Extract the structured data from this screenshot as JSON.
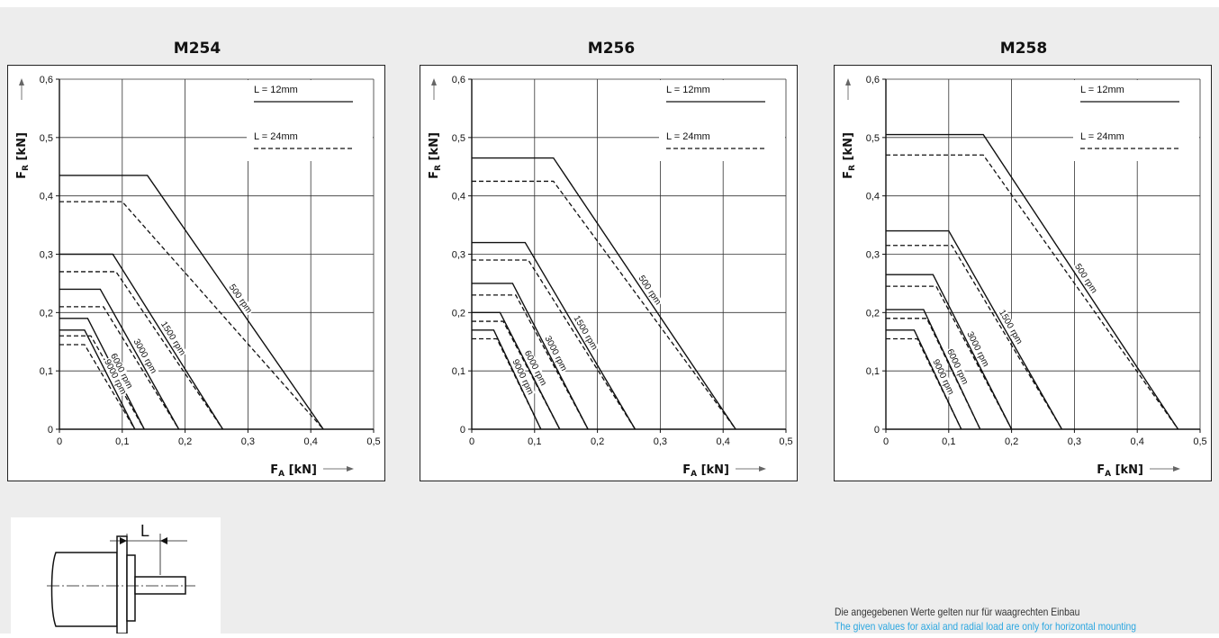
{
  "chart_data": [
    {
      "type": "line",
      "title": "M254",
      "xlabel": "F_A [kN]",
      "ylabel": "F_R [kN]",
      "xlim": [
        0,
        0.5
      ],
      "ylim": [
        0,
        0.6
      ],
      "xticks": [
        "0",
        "0,1",
        "0,2",
        "0,3",
        "0,4",
        "0,5"
      ],
      "yticks": [
        "0",
        "0,1",
        "0,2",
        "0,3",
        "0,4",
        "0,5",
        "0,6"
      ],
      "legend": [
        {
          "label": "L = 12mm",
          "style": "solid"
        },
        {
          "label": "L = 24mm",
          "style": "dashed"
        }
      ],
      "series": [
        {
          "name": "500 rpm",
          "solid": [
            [
              0,
              0.435
            ],
            [
              0.14,
              0.435
            ],
            [
              0.42,
              0
            ]
          ],
          "dashed": [
            [
              0,
              0.39
            ],
            [
              0.1,
              0.39
            ],
            [
              0.42,
              0
            ]
          ]
        },
        {
          "name": "1500 rpm",
          "solid": [
            [
              0,
              0.3
            ],
            [
              0.085,
              0.3
            ],
            [
              0.26,
              0
            ]
          ],
          "dashed": [
            [
              0,
              0.27
            ],
            [
              0.09,
              0.27
            ],
            [
              0.26,
              0
            ]
          ]
        },
        {
          "name": "3000 rpm",
          "solid": [
            [
              0,
              0.24
            ],
            [
              0.065,
              0.24
            ],
            [
              0.19,
              0
            ]
          ],
          "dashed": [
            [
              0,
              0.21
            ],
            [
              0.07,
              0.21
            ],
            [
              0.19,
              0
            ]
          ]
        },
        {
          "name": "6000 rpm",
          "solid": [
            [
              0,
              0.19
            ],
            [
              0.045,
              0.19
            ],
            [
              0.135,
              0
            ]
          ],
          "dashed": [
            [
              0,
              0.16
            ],
            [
              0.05,
              0.16
            ],
            [
              0.135,
              0
            ]
          ]
        },
        {
          "name": "9000 rpm",
          "solid": [
            [
              0,
              0.17
            ],
            [
              0.04,
              0.17
            ],
            [
              0.12,
              0
            ]
          ],
          "dashed": [
            [
              0,
              0.145
            ],
            [
              0.04,
              0.145
            ],
            [
              0.12,
              0
            ]
          ]
        }
      ]
    },
    {
      "type": "line",
      "title": "M256",
      "xlabel": "F_A [kN]",
      "ylabel": "F_R [kN]",
      "xlim": [
        0,
        0.5
      ],
      "ylim": [
        0,
        0.6
      ],
      "xticks": [
        "0",
        "0,1",
        "0,2",
        "0,3",
        "0,4",
        "0,5"
      ],
      "yticks": [
        "0",
        "0,1",
        "0,2",
        "0,3",
        "0,4",
        "0,5",
        "0,6"
      ],
      "legend": [
        {
          "label": "L = 12mm",
          "style": "solid"
        },
        {
          "label": "L = 24mm",
          "style": "dashed"
        }
      ],
      "series": [
        {
          "name": "500 rpm",
          "solid": [
            [
              0,
              0.465
            ],
            [
              0.13,
              0.465
            ],
            [
              0.42,
              0
            ]
          ],
          "dashed": [
            [
              0,
              0.425
            ],
            [
              0.13,
              0.425
            ],
            [
              0.42,
              0
            ]
          ]
        },
        {
          "name": "1500 rpm",
          "solid": [
            [
              0,
              0.32
            ],
            [
              0.085,
              0.32
            ],
            [
              0.26,
              0
            ]
          ],
          "dashed": [
            [
              0,
              0.29
            ],
            [
              0.09,
              0.29
            ],
            [
              0.26,
              0
            ]
          ]
        },
        {
          "name": "3000 rpm",
          "solid": [
            [
              0,
              0.25
            ],
            [
              0.065,
              0.25
            ],
            [
              0.185,
              0
            ]
          ],
          "dashed": [
            [
              0,
              0.23
            ],
            [
              0.07,
              0.23
            ],
            [
              0.185,
              0
            ]
          ]
        },
        {
          "name": "6000 rpm",
          "solid": [
            [
              0,
              0.2
            ],
            [
              0.045,
              0.2
            ],
            [
              0.14,
              0
            ]
          ],
          "dashed": [
            [
              0,
              0.185
            ],
            [
              0.05,
              0.185
            ],
            [
              0.14,
              0
            ]
          ]
        },
        {
          "name": "9000 rpm",
          "solid": [
            [
              0,
              0.17
            ],
            [
              0.035,
              0.17
            ],
            [
              0.11,
              0
            ]
          ],
          "dashed": [
            [
              0,
              0.155
            ],
            [
              0.04,
              0.155
            ],
            [
              0.11,
              0
            ]
          ]
        }
      ]
    },
    {
      "type": "line",
      "title": "M258",
      "xlabel": "F_A [kN]",
      "ylabel": "F_R [kN]",
      "xlim": [
        0,
        0.5
      ],
      "ylim": [
        0,
        0.6
      ],
      "xticks": [
        "0",
        "0,1",
        "0,2",
        "0,3",
        "0,4",
        "0,5"
      ],
      "yticks": [
        "0",
        "0,1",
        "0,2",
        "0,3",
        "0,4",
        "0,5",
        "0,6"
      ],
      "legend": [
        {
          "label": "L = 12mm",
          "style": "solid"
        },
        {
          "label": "L = 24mm",
          "style": "dashed"
        }
      ],
      "series": [
        {
          "name": "500 rpm",
          "solid": [
            [
              0,
              0.505
            ],
            [
              0.155,
              0.505
            ],
            [
              0.465,
              0
            ]
          ],
          "dashed": [
            [
              0,
              0.47
            ],
            [
              0.155,
              0.47
            ],
            [
              0.465,
              0
            ]
          ]
        },
        {
          "name": "1500 rpm",
          "solid": [
            [
              0,
              0.34
            ],
            [
              0.1,
              0.34
            ],
            [
              0.28,
              0
            ]
          ],
          "dashed": [
            [
              0,
              0.315
            ],
            [
              0.105,
              0.315
            ],
            [
              0.28,
              0
            ]
          ]
        },
        {
          "name": "3000 rpm",
          "solid": [
            [
              0,
              0.265
            ],
            [
              0.075,
              0.265
            ],
            [
              0.2,
              0
            ]
          ],
          "dashed": [
            [
              0,
              0.245
            ],
            [
              0.08,
              0.245
            ],
            [
              0.2,
              0
            ]
          ]
        },
        {
          "name": "6000 rpm",
          "solid": [
            [
              0,
              0.205
            ],
            [
              0.06,
              0.205
            ],
            [
              0.15,
              0
            ]
          ],
          "dashed": [
            [
              0,
              0.19
            ],
            [
              0.065,
              0.19
            ],
            [
              0.15,
              0
            ]
          ]
        },
        {
          "name": "9000 rpm",
          "solid": [
            [
              0,
              0.17
            ],
            [
              0.045,
              0.17
            ],
            [
              0.12,
              0
            ]
          ],
          "dashed": [
            [
              0,
              0.155
            ],
            [
              0.05,
              0.155
            ],
            [
              0.12,
              0
            ]
          ]
        }
      ]
    }
  ],
  "sketch": {
    "dimension_label": "L"
  },
  "notes": {
    "german": "Die angegebenen Werte gelten nur für waagrechten Einbau",
    "english": "The given values for axial and radial load are only for horizontal mounting",
    "english_color": "#2aa6e0"
  }
}
